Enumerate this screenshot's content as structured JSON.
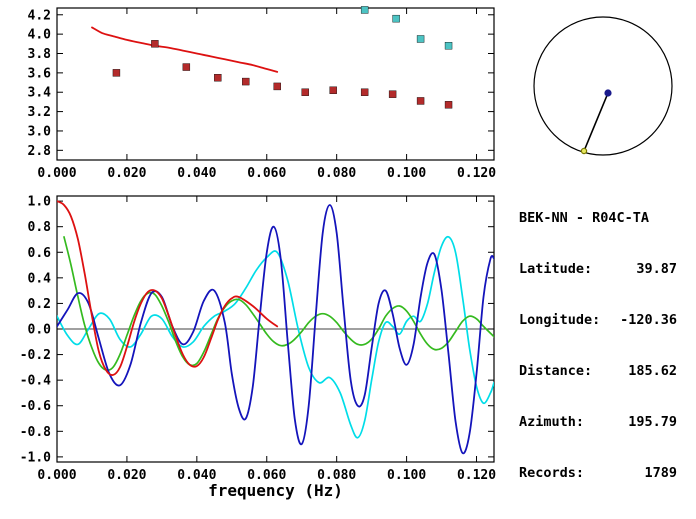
{
  "station_panel": {
    "header": "BEK-NN - R04C-TA",
    "fields": [
      {
        "label": "Latitude:",
        "value": "39.87"
      },
      {
        "label": "Longitude:",
        "value": "-120.36"
      },
      {
        "label": "Distance:",
        "value": "185.62"
      },
      {
        "label": "Azimuth:",
        "value": "195.79"
      },
      {
        "label": "Records:",
        "value": "1789"
      }
    ]
  },
  "map": {
    "outline_color": "#000000",
    "path_color": "#000000",
    "station_dot_color": "#1a1a8c",
    "event_marker_fill": "#e8e860",
    "event_marker_stroke": "#7a7a00"
  },
  "chart_data": [
    {
      "type": "scatter",
      "name": "dispersion",
      "title": "",
      "xlabel": "",
      "ylabel": "",
      "xlim": [
        0,
        0.125
      ],
      "ylim": [
        2.7,
        4.27
      ],
      "grid": false,
      "xticks": [
        0,
        0.02,
        0.04,
        0.06,
        0.08,
        0.1,
        0.12
      ],
      "xtick_labels": [
        "0.000",
        "0.020",
        "0.040",
        "0.060",
        "0.080",
        "0.100",
        "0.120"
      ],
      "yticks": [
        4.2,
        4.0,
        3.8,
        3.6,
        3.4,
        3.2,
        3.0,
        2.8
      ],
      "ytick_labels": [
        "4.2",
        "4.0",
        "3.8",
        "3.6",
        "3.4",
        "3.2",
        "3.0",
        "2.8"
      ],
      "zero_line": false,
      "series": [
        {
          "name": "reference-dispersion-curve",
          "type": "line",
          "color": "#dd1111",
          "width": 1.8,
          "points": [
            [
              0.01,
              4.07
            ],
            [
              0.013,
              4.01
            ],
            [
              0.016,
              3.98
            ],
            [
              0.02,
              3.94
            ],
            [
              0.024,
              3.91
            ],
            [
              0.028,
              3.88
            ],
            [
              0.032,
              3.86
            ],
            [
              0.036,
              3.83
            ],
            [
              0.04,
              3.8
            ],
            [
              0.044,
              3.77
            ],
            [
              0.048,
              3.74
            ],
            [
              0.052,
              3.71
            ],
            [
              0.056,
              3.68
            ],
            [
              0.06,
              3.64
            ],
            [
              0.063,
              3.61
            ]
          ]
        },
        {
          "name": "accepted-measurements",
          "type": "scatter",
          "marker": "square",
          "color": "#b32b2b",
          "points": [
            [
              0.017,
              3.6
            ],
            [
              0.028,
              3.9
            ],
            [
              0.037,
              3.66
            ],
            [
              0.046,
              3.55
            ],
            [
              0.054,
              3.51
            ],
            [
              0.063,
              3.46
            ],
            [
              0.071,
              3.4
            ],
            [
              0.079,
              3.42
            ],
            [
              0.088,
              3.4
            ],
            [
              0.096,
              3.38
            ],
            [
              0.104,
              3.31
            ],
            [
              0.112,
              3.27
            ]
          ]
        },
        {
          "name": "flagged-measurements",
          "type": "scatter",
          "marker": "square",
          "color": "#4cc3c3",
          "points": [
            [
              0.088,
              4.25
            ],
            [
              0.097,
              4.16
            ],
            [
              0.104,
              3.95
            ],
            [
              0.112,
              3.88
            ]
          ]
        }
      ]
    },
    {
      "type": "line",
      "name": "correlation",
      "title": "",
      "xlabel": "frequency (Hz)",
      "ylabel": "",
      "xlim": [
        0,
        0.125
      ],
      "ylim": [
        -1.04,
        1.04
      ],
      "grid": false,
      "xticks": [
        0,
        0.02,
        0.04,
        0.06,
        0.08,
        0.1,
        0.12
      ],
      "xtick_labels": [
        "0.000",
        "0.020",
        "0.040",
        "0.060",
        "0.080",
        "0.100",
        "0.120"
      ],
      "yticks": [
        1.0,
        0.8,
        0.6,
        0.4,
        0.2,
        0.0,
        -0.2,
        -0.4,
        -0.6,
        -0.8,
        -1.0
      ],
      "ytick_labels": [
        "1.0",
        "0.8",
        "0.6",
        "0.4",
        "0.2",
        "0.0",
        "-0.2",
        "-0.4",
        "-0.6",
        "-0.8",
        "-1.0"
      ],
      "zero_line": true,
      "series": [
        {
          "name": "trace-cyan",
          "type": "line",
          "color": "#00dde8",
          "width": 1.7,
          "points": [
            [
              0,
              0.1
            ],
            [
              0.003,
              -0.05
            ],
            [
              0.006,
              -0.12
            ],
            [
              0.009,
              0.0
            ],
            [
              0.012,
              0.12
            ],
            [
              0.015,
              0.08
            ],
            [
              0.018,
              -0.08
            ],
            [
              0.021,
              -0.14
            ],
            [
              0.024,
              -0.04
            ],
            [
              0.027,
              0.1
            ],
            [
              0.03,
              0.08
            ],
            [
              0.033,
              -0.06
            ],
            [
              0.036,
              -0.14
            ],
            [
              0.039,
              -0.1
            ],
            [
              0.042,
              0.02
            ],
            [
              0.045,
              0.1
            ],
            [
              0.048,
              0.14
            ],
            [
              0.051,
              0.2
            ],
            [
              0.054,
              0.32
            ],
            [
              0.057,
              0.46
            ],
            [
              0.06,
              0.56
            ],
            [
              0.063,
              0.6
            ],
            [
              0.066,
              0.38
            ],
            [
              0.069,
              0.0
            ],
            [
              0.072,
              -0.3
            ],
            [
              0.075,
              -0.42
            ],
            [
              0.078,
              -0.38
            ],
            [
              0.081,
              -0.5
            ],
            [
              0.084,
              -0.75
            ],
            [
              0.086,
              -0.85
            ],
            [
              0.088,
              -0.72
            ],
            [
              0.09,
              -0.4
            ],
            [
              0.092,
              -0.1
            ],
            [
              0.094,
              0.05
            ],
            [
              0.096,
              0.02
            ],
            [
              0.098,
              -0.04
            ],
            [
              0.1,
              0.06
            ],
            [
              0.102,
              0.1
            ],
            [
              0.104,
              0.06
            ],
            [
              0.106,
              0.2
            ],
            [
              0.108,
              0.45
            ],
            [
              0.11,
              0.65
            ],
            [
              0.112,
              0.72
            ],
            [
              0.114,
              0.6
            ],
            [
              0.116,
              0.25
            ],
            [
              0.118,
              -0.15
            ],
            [
              0.12,
              -0.45
            ],
            [
              0.122,
              -0.58
            ],
            [
              0.124,
              -0.5
            ],
            [
              0.125,
              -0.42
            ]
          ]
        },
        {
          "name": "trace-green",
          "type": "line",
          "color": "#35ba1f",
          "width": 1.7,
          "points": [
            [
              0.002,
              0.72
            ],
            [
              0.004,
              0.5
            ],
            [
              0.006,
              0.25
            ],
            [
              0.008,
              0.02
            ],
            [
              0.01,
              -0.15
            ],
            [
              0.012,
              -0.27
            ],
            [
              0.014,
              -0.32
            ],
            [
              0.016,
              -0.3
            ],
            [
              0.018,
              -0.2
            ],
            [
              0.02,
              -0.05
            ],
            [
              0.022,
              0.1
            ],
            [
              0.024,
              0.22
            ],
            [
              0.026,
              0.28
            ],
            [
              0.028,
              0.27
            ],
            [
              0.03,
              0.18
            ],
            [
              0.032,
              0.05
            ],
            [
              0.034,
              -0.1
            ],
            [
              0.036,
              -0.22
            ],
            [
              0.038,
              -0.28
            ],
            [
              0.04,
              -0.27
            ],
            [
              0.042,
              -0.18
            ],
            [
              0.044,
              -0.05
            ],
            [
              0.046,
              0.08
            ],
            [
              0.048,
              0.17
            ],
            [
              0.05,
              0.22
            ],
            [
              0.052,
              0.23
            ],
            [
              0.054,
              0.19
            ],
            [
              0.056,
              0.12
            ],
            [
              0.058,
              0.04
            ],
            [
              0.06,
              -0.04
            ],
            [
              0.062,
              -0.1
            ],
            [
              0.064,
              -0.13
            ],
            [
              0.066,
              -0.12
            ],
            [
              0.068,
              -0.08
            ],
            [
              0.07,
              -0.02
            ],
            [
              0.072,
              0.05
            ],
            [
              0.074,
              0.1
            ],
            [
              0.076,
              0.12
            ],
            [
              0.078,
              0.1
            ],
            [
              0.08,
              0.05
            ],
            [
              0.082,
              -0.02
            ],
            [
              0.084,
              -0.08
            ],
            [
              0.086,
              -0.12
            ],
            [
              0.088,
              -0.12
            ],
            [
              0.09,
              -0.08
            ],
            [
              0.092,
              0.0
            ],
            [
              0.094,
              0.1
            ],
            [
              0.096,
              0.16
            ],
            [
              0.098,
              0.18
            ],
            [
              0.1,
              0.14
            ],
            [
              0.102,
              0.06
            ],
            [
              0.104,
              -0.04
            ],
            [
              0.106,
              -0.12
            ],
            [
              0.108,
              -0.16
            ],
            [
              0.11,
              -0.15
            ],
            [
              0.112,
              -0.1
            ],
            [
              0.114,
              -0.02
            ],
            [
              0.116,
              0.06
            ],
            [
              0.118,
              0.1
            ],
            [
              0.12,
              0.08
            ],
            [
              0.122,
              0.02
            ],
            [
              0.125,
              -0.06
            ]
          ]
        },
        {
          "name": "trace-blue",
          "type": "line",
          "color": "#1414bb",
          "width": 1.8,
          "points": [
            [
              0,
              0.02
            ],
            [
              0.003,
              0.15
            ],
            [
              0.006,
              0.28
            ],
            [
              0.009,
              0.2
            ],
            [
              0.012,
              -0.08
            ],
            [
              0.015,
              -0.35
            ],
            [
              0.018,
              -0.44
            ],
            [
              0.021,
              -0.28
            ],
            [
              0.024,
              0.05
            ],
            [
              0.027,
              0.28
            ],
            [
              0.03,
              0.25
            ],
            [
              0.033,
              0.02
            ],
            [
              0.036,
              -0.12
            ],
            [
              0.039,
              -0.02
            ],
            [
              0.042,
              0.22
            ],
            [
              0.045,
              0.3
            ],
            [
              0.048,
              0.05
            ],
            [
              0.05,
              -0.35
            ],
            [
              0.052,
              -0.62
            ],
            [
              0.054,
              -0.7
            ],
            [
              0.056,
              -0.45
            ],
            [
              0.058,
              0.1
            ],
            [
              0.06,
              0.6
            ],
            [
              0.062,
              0.8
            ],
            [
              0.064,
              0.55
            ],
            [
              0.066,
              -0.1
            ],
            [
              0.068,
              -0.7
            ],
            [
              0.07,
              -0.9
            ],
            [
              0.072,
              -0.6
            ],
            [
              0.074,
              0.1
            ],
            [
              0.076,
              0.75
            ],
            [
              0.078,
              0.97
            ],
            [
              0.08,
              0.75
            ],
            [
              0.082,
              0.15
            ],
            [
              0.084,
              -0.4
            ],
            [
              0.086,
              -0.6
            ],
            [
              0.088,
              -0.52
            ],
            [
              0.09,
              -0.15
            ],
            [
              0.092,
              0.2
            ],
            [
              0.094,
              0.3
            ],
            [
              0.096,
              0.12
            ],
            [
              0.098,
              -0.15
            ],
            [
              0.1,
              -0.28
            ],
            [
              0.102,
              -0.12
            ],
            [
              0.104,
              0.25
            ],
            [
              0.106,
              0.52
            ],
            [
              0.108,
              0.58
            ],
            [
              0.11,
              0.3
            ],
            [
              0.112,
              -0.2
            ],
            [
              0.114,
              -0.72
            ],
            [
              0.116,
              -0.97
            ],
            [
              0.118,
              -0.82
            ],
            [
              0.12,
              -0.35
            ],
            [
              0.122,
              0.25
            ],
            [
              0.124,
              0.55
            ],
            [
              0.125,
              0.55
            ]
          ]
        },
        {
          "name": "trace-red",
          "type": "line",
          "color": "#dd1111",
          "width": 1.8,
          "points": [
            [
              0,
              1.0
            ],
            [
              0.002,
              0.97
            ],
            [
              0.004,
              0.88
            ],
            [
              0.006,
              0.7
            ],
            [
              0.008,
              0.42
            ],
            [
              0.01,
              0.1
            ],
            [
              0.012,
              -0.18
            ],
            [
              0.014,
              -0.32
            ],
            [
              0.016,
              -0.36
            ],
            [
              0.018,
              -0.3
            ],
            [
              0.02,
              -0.14
            ],
            [
              0.022,
              0.05
            ],
            [
              0.024,
              0.2
            ],
            [
              0.026,
              0.29
            ],
            [
              0.028,
              0.3
            ],
            [
              0.03,
              0.24
            ],
            [
              0.032,
              0.1
            ],
            [
              0.034,
              -0.06
            ],
            [
              0.036,
              -0.2
            ],
            [
              0.038,
              -0.28
            ],
            [
              0.04,
              -0.29
            ],
            [
              0.042,
              -0.22
            ],
            [
              0.044,
              -0.08
            ],
            [
              0.046,
              0.07
            ],
            [
              0.048,
              0.18
            ],
            [
              0.05,
              0.24
            ],
            [
              0.052,
              0.25
            ],
            [
              0.056,
              0.18
            ],
            [
              0.06,
              0.08
            ],
            [
              0.063,
              0.02
            ]
          ]
        }
      ]
    }
  ]
}
